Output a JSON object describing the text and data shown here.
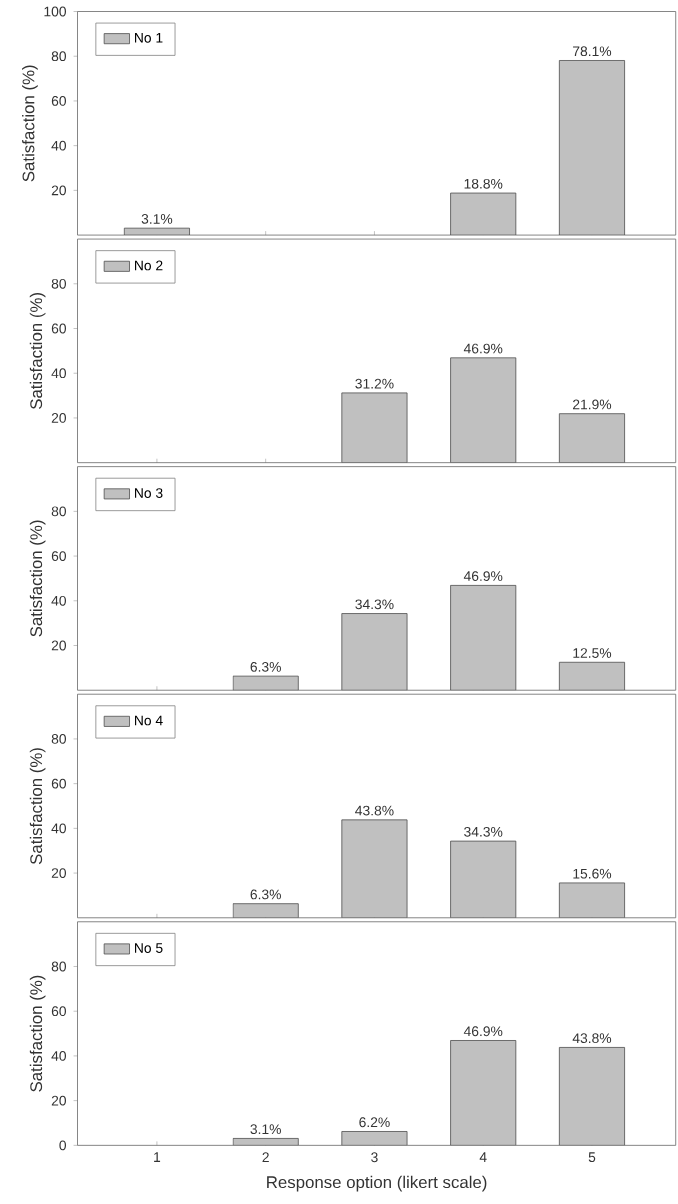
{
  "chart_data": [
    {
      "type": "bar",
      "categories": [
        "1",
        "2",
        "3",
        "4",
        "5"
      ],
      "ylabel": "Satisfaction (%)",
      "ylim": [
        0,
        100
      ],
      "yticks": [
        20,
        40,
        60,
        80,
        100
      ],
      "legend": "top left",
      "tick_labels": "y",
      "series": [
        {
          "name": "No 1",
          "color": "#c0c0c0",
          "values": [
            3.1,
            null,
            null,
            18.8,
            78.1
          ],
          "value_labels": [
            "3.1%",
            null,
            null,
            "18.8%",
            "78.1%"
          ]
        }
      ]
    },
    {
      "type": "bar",
      "categories": [
        "1",
        "2",
        "3",
        "4",
        "5"
      ],
      "ylabel": "Satisfaction (%)",
      "ylim": [
        0,
        100
      ],
      "yticks": [
        20,
        40,
        60,
        80
      ],
      "legend": "top left",
      "tick_labels": "y",
      "series": [
        {
          "name": "No 2",
          "color": "#c0c0c0",
          "values": [
            null,
            null,
            31.2,
            46.9,
            21.9
          ],
          "value_labels": [
            null,
            null,
            "31.2%",
            "46.9%",
            "21.9%"
          ]
        }
      ]
    },
    {
      "type": "bar",
      "categories": [
        "1",
        "2",
        "3",
        "4",
        "5"
      ],
      "ylabel": "Satisfaction (%)",
      "ylim": [
        0,
        100
      ],
      "yticks": [
        20,
        40,
        60,
        80
      ],
      "legend": "top left",
      "tick_labels": "y",
      "series": [
        {
          "name": "No 3",
          "color": "#c0c0c0",
          "values": [
            null,
            6.3,
            34.3,
            46.9,
            12.5
          ],
          "value_labels": [
            null,
            "6.3%",
            "34.3%",
            "46.9%",
            "12.5%"
          ]
        }
      ]
    },
    {
      "type": "bar",
      "categories": [
        "1",
        "2",
        "3",
        "4",
        "5"
      ],
      "ylabel": "Satisfaction (%)",
      "ylim": [
        0,
        100
      ],
      "yticks": [
        20,
        40,
        60,
        80
      ],
      "legend": "top left",
      "tick_labels": "y",
      "series": [
        {
          "name": "No 4",
          "color": "#c0c0c0",
          "values": [
            null,
            6.3,
            43.8,
            34.3,
            15.6
          ],
          "value_labels": [
            null,
            "6.3%",
            "43.8%",
            "34.3%",
            "15.6%"
          ]
        }
      ]
    },
    {
      "type": "bar",
      "categories": [
        "1",
        "2",
        "3",
        "4",
        "5"
      ],
      "xlabel": "Response option (likert scale)",
      "ylabel": "Satisfaction (%)",
      "ylim": [
        0,
        100
      ],
      "yticks": [
        0,
        20,
        40,
        60,
        80
      ],
      "legend": "top left",
      "series": [
        {
          "name": "No 5",
          "color": "#c0c0c0",
          "values": [
            null,
            3.1,
            6.2,
            46.9,
            43.8
          ],
          "value_labels": [
            null,
            "3.1%",
            "6.2%",
            "46.9%",
            "43.8%"
          ]
        }
      ]
    }
  ]
}
